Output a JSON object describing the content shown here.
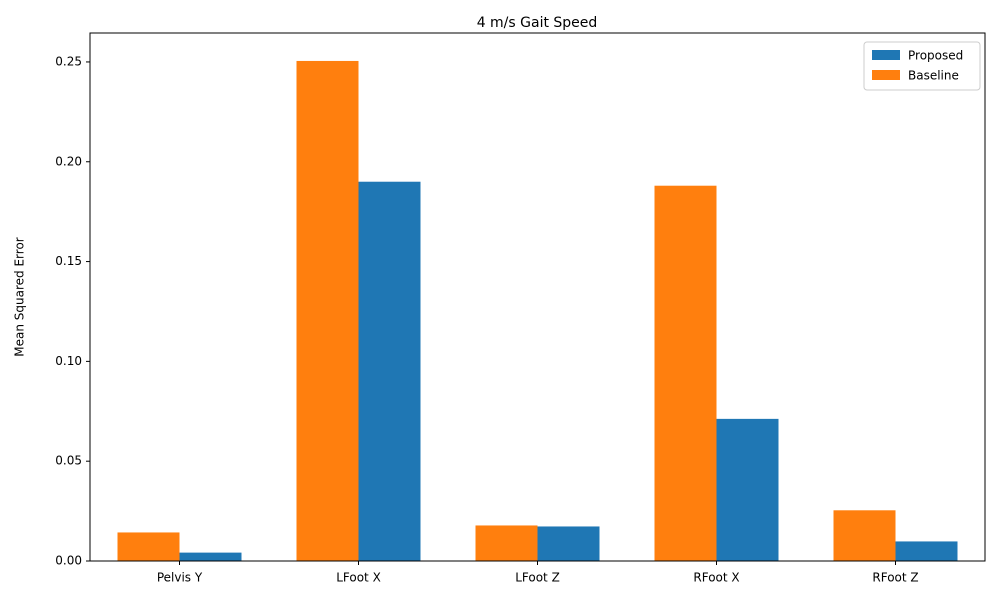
{
  "chart_data": {
    "type": "bar",
    "title": "4 m/s Gait Speed",
    "y_label": "Mean Squared Error",
    "categories": [
      "Pelvis Y",
      "LFoot X",
      "LFoot Z",
      "RFoot X",
      "RFoot Z"
    ],
    "series": [
      {
        "name": "Proposed",
        "color": "#1f77b4",
        "values": [
          0.0042,
          0.19,
          0.0173,
          0.0712,
          0.0098
        ]
      },
      {
        "name": "Baseline",
        "color": "#ff7f0e",
        "values": [
          0.0143,
          0.2505,
          0.0178,
          0.188,
          0.0254
        ]
      }
    ],
    "ylim": [
      0,
      0.2645
    ],
    "yticks": [
      {
        "value": 0,
        "label": "0.00"
      },
      {
        "value": 0.05,
        "label": "0.05"
      },
      {
        "value": 0.1,
        "label": "0.10"
      },
      {
        "value": 0.15,
        "label": "0.15"
      },
      {
        "value": 0.2,
        "label": "0.20"
      },
      {
        "value": 0.25,
        "label": "0.25"
      }
    ],
    "legend": "upper right",
    "grid": false
  }
}
